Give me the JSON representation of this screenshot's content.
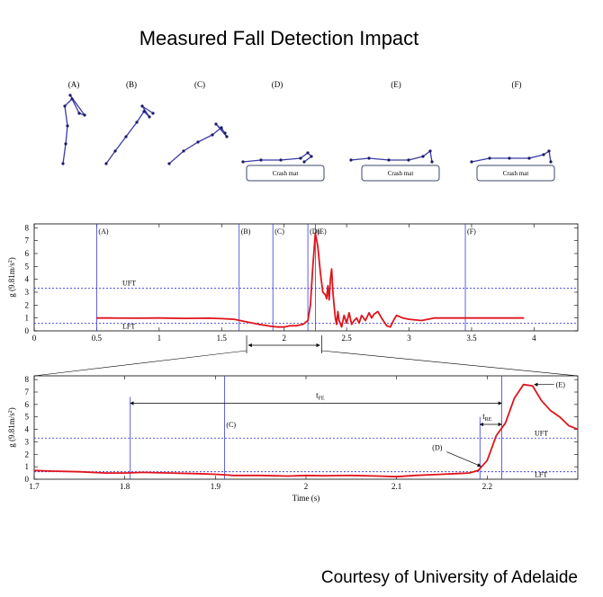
{
  "title": "Measured Fall Detection Impact",
  "credit": "Courtesy of University of Adelaide",
  "colors": {
    "signal": "#e0141c",
    "markers": "#3a3ad8",
    "threshold": "#2a2ae0",
    "figure": "#3a3aa8"
  },
  "figures": {
    "labels": [
      "(A)",
      "(B)",
      "(C)",
      "(D)",
      "(E)",
      "(F)"
    ],
    "mat_label": "Crash mat"
  },
  "chart_data": [
    {
      "type": "line",
      "xlabel": "",
      "ylabel": "g (9.81m/s²)",
      "ylabel_parts": {
        "prefix": "g (9.81m/s",
        "sup": "2",
        "suffix": ")"
      },
      "xlim": [
        0,
        4.35
      ],
      "ylim": [
        0,
        8.3
      ],
      "xticks": [
        "0",
        "0.5",
        "1",
        "1.5",
        "2",
        "2.5",
        "3",
        "3.5",
        "4"
      ],
      "yticks": [
        "0",
        "1",
        "2",
        "3",
        "4",
        "5",
        "6",
        "7",
        "8"
      ],
      "grid": false,
      "thresholds": [
        {
          "label": "UFT",
          "y": 3.3
        },
        {
          "label": "LFT",
          "y": 0.6
        }
      ],
      "markers": [
        {
          "label": "(A)",
          "x": 0.5
        },
        {
          "label": "(B)",
          "x": 1.64
        },
        {
          "label": "(C)",
          "x": 1.91
        },
        {
          "label": "(D)",
          "x": 2.19
        },
        {
          "label": "(E)",
          "x": 2.25
        },
        {
          "label": "(F)",
          "x": 3.45
        }
      ],
      "series": [
        {
          "x": [
            0.5,
            0.6,
            0.8,
            1.0,
            1.2,
            1.4,
            1.5,
            1.6,
            1.7,
            1.8,
            1.9,
            1.95,
            2.0,
            2.05,
            2.1,
            2.15,
            2.19,
            2.21,
            2.23,
            2.25,
            2.27,
            2.29,
            2.31,
            2.33,
            2.34,
            2.35,
            2.36,
            2.37,
            2.38,
            2.39,
            2.4,
            2.41,
            2.42,
            2.43,
            2.44,
            2.46,
            2.48,
            2.5,
            2.52,
            2.54,
            2.56,
            2.58,
            2.6,
            2.62,
            2.65,
            2.68,
            2.7,
            2.72,
            2.75,
            2.78,
            2.8,
            2.82,
            2.85,
            2.88,
            2.9,
            2.95,
            3.0,
            3.1,
            3.2,
            3.4,
            3.6,
            3.8,
            3.92
          ],
          "y": [
            1.0,
            1.0,
            0.98,
            1.0,
            0.97,
            0.98,
            0.95,
            0.9,
            0.7,
            0.5,
            0.35,
            0.3,
            0.3,
            0.4,
            0.4,
            0.5,
            0.8,
            2.0,
            5.0,
            7.6,
            6.5,
            4.5,
            3.0,
            2.8,
            2.5,
            3.5,
            2.4,
            4.0,
            4.8,
            3.0,
            2.0,
            1.0,
            0.5,
            1.5,
            0.8,
            0.3,
            1.2,
            0.6,
            1.4,
            0.5,
            0.8,
            1.0,
            0.6,
            1.2,
            0.8,
            1.4,
            1.0,
            1.3,
            1.5,
            1.0,
            0.7,
            0.4,
            0.3,
            0.9,
            1.2,
            1.0,
            0.9,
            0.8,
            1.0,
            1.0,
            1.0,
            1.0,
            1.0
          ]
        }
      ],
      "zoom_range": [
        1.7,
        2.3
      ]
    },
    {
      "type": "line",
      "xlabel": "Time (s)",
      "ylabel": "g (9.81m/s²)",
      "ylabel_parts": {
        "prefix": "g (9.81m/s",
        "sup": "2",
        "suffix": ")"
      },
      "xlim": [
        1.7,
        2.3
      ],
      "ylim": [
        0,
        8.3
      ],
      "xticks": [
        "1.7",
        "1.8",
        "1.9",
        "2",
        "2.1",
        "2.2"
      ],
      "yticks": [
        "0",
        "1",
        "2",
        "3",
        "4",
        "5",
        "6",
        "7",
        "8"
      ],
      "grid": false,
      "thresholds": [
        {
          "label": "UFT",
          "y": 3.3
        },
        {
          "label": "LFT",
          "y": 0.6
        }
      ],
      "markers": [
        {
          "label": "",
          "x": 1.806
        },
        {
          "label": "(C)",
          "x": 1.91
        },
        {
          "label": "",
          "x": 2.192
        },
        {
          "label": "",
          "x": 2.216
        }
      ],
      "annotations": [
        {
          "label": "t",
          "sub": "FE",
          "from": 1.806,
          "to": 2.216,
          "y": 6.1
        },
        {
          "label": "t",
          "sub": "RE",
          "from": 2.192,
          "to": 2.216,
          "y": 4.4
        },
        {
          "label": "(D)",
          "x": 2.195,
          "y": 0.9
        },
        {
          "label": "(E)",
          "x": 2.25,
          "y": 7.6
        }
      ],
      "series": [
        {
          "x": [
            1.7,
            1.72,
            1.75,
            1.78,
            1.8,
            1.82,
            1.85,
            1.88,
            1.9,
            1.92,
            1.95,
            1.98,
            2.0,
            2.02,
            2.05,
            2.08,
            2.1,
            2.12,
            2.15,
            2.18,
            2.19,
            2.2,
            2.21,
            2.22,
            2.23,
            2.24,
            2.25,
            2.26,
            2.27,
            2.28,
            2.29,
            2.3
          ],
          "y": [
            0.7,
            0.65,
            0.6,
            0.5,
            0.5,
            0.55,
            0.5,
            0.45,
            0.4,
            0.3,
            0.3,
            0.25,
            0.3,
            0.28,
            0.3,
            0.25,
            0.2,
            0.3,
            0.4,
            0.5,
            0.7,
            1.5,
            3.5,
            4.5,
            6.5,
            7.6,
            7.5,
            6.3,
            5.5,
            5.0,
            4.3,
            4.0
          ]
        }
      ]
    }
  ]
}
